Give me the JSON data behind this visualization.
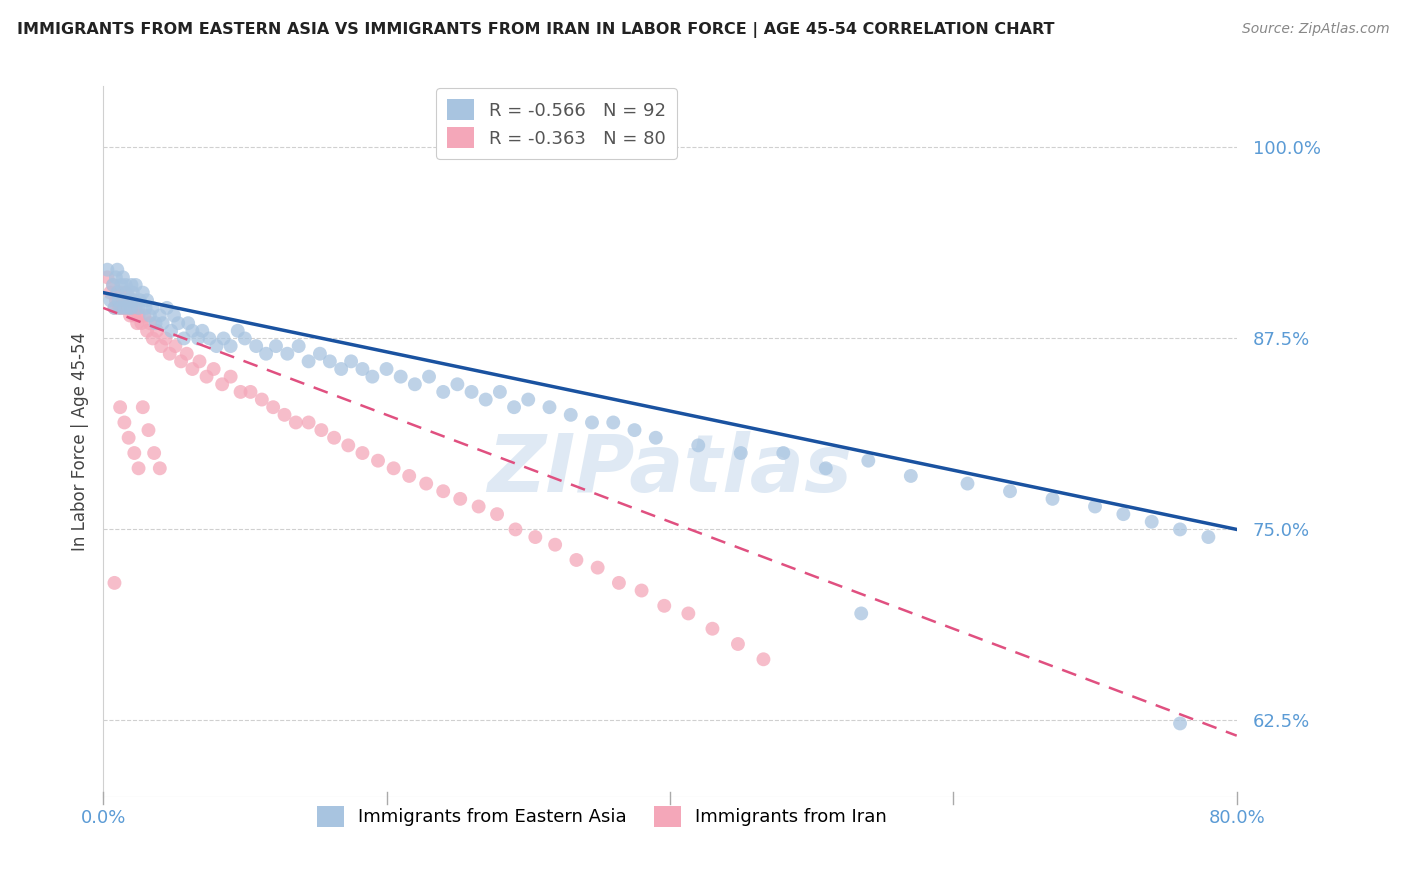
{
  "title": "IMMIGRANTS FROM EASTERN ASIA VS IMMIGRANTS FROM IRAN IN LABOR FORCE | AGE 45-54 CORRELATION CHART",
  "source": "Source: ZipAtlas.com",
  "ylabel": "In Labor Force | Age 45-54",
  "ytick_labels": [
    "100.0%",
    "87.5%",
    "75.0%",
    "62.5%"
  ],
  "ytick_values": [
    1.0,
    0.875,
    0.75,
    0.625
  ],
  "xlim": [
    0.0,
    0.8
  ],
  "ylim": [
    0.575,
    1.04
  ],
  "series1_color": "#a8c4e0",
  "series2_color": "#f4a7b9",
  "line1_color": "#1a52a0",
  "line2_color": "#e05080",
  "watermark": "ZIPatlas",
  "legend_label1": "Immigrants from Eastern Asia",
  "legend_label2": "Immigrants from Iran",
  "legend1_R": "-0.566",
  "legend1_N": "92",
  "legend2_R": "-0.363",
  "legend2_N": "80",
  "blue_x": [
    0.003,
    0.005,
    0.007,
    0.008,
    0.009,
    0.01,
    0.01,
    0.011,
    0.012,
    0.013,
    0.014,
    0.015,
    0.015,
    0.016,
    0.017,
    0.018,
    0.019,
    0.02,
    0.02,
    0.021,
    0.022,
    0.023,
    0.025,
    0.026,
    0.028,
    0.03,
    0.031,
    0.033,
    0.035,
    0.037,
    0.04,
    0.042,
    0.045,
    0.048,
    0.05,
    0.053,
    0.057,
    0.06,
    0.063,
    0.067,
    0.07,
    0.075,
    0.08,
    0.085,
    0.09,
    0.095,
    0.1,
    0.108,
    0.115,
    0.122,
    0.13,
    0.138,
    0.145,
    0.153,
    0.16,
    0.168,
    0.175,
    0.183,
    0.19,
    0.2,
    0.21,
    0.22,
    0.23,
    0.24,
    0.25,
    0.26,
    0.27,
    0.28,
    0.29,
    0.3,
    0.315,
    0.33,
    0.345,
    0.36,
    0.375,
    0.39,
    0.42,
    0.45,
    0.48,
    0.51,
    0.54,
    0.57,
    0.61,
    0.64,
    0.67,
    0.7,
    0.72,
    0.74,
    0.76,
    0.78,
    0.535,
    0.76
  ],
  "blue_y": [
    0.92,
    0.9,
    0.91,
    0.895,
    0.915,
    0.905,
    0.92,
    0.9,
    0.895,
    0.91,
    0.915,
    0.9,
    0.895,
    0.91,
    0.905,
    0.895,
    0.9,
    0.91,
    0.895,
    0.905,
    0.9,
    0.91,
    0.895,
    0.9,
    0.905,
    0.895,
    0.9,
    0.89,
    0.895,
    0.885,
    0.89,
    0.885,
    0.895,
    0.88,
    0.89,
    0.885,
    0.875,
    0.885,
    0.88,
    0.875,
    0.88,
    0.875,
    0.87,
    0.875,
    0.87,
    0.88,
    0.875,
    0.87,
    0.865,
    0.87,
    0.865,
    0.87,
    0.86,
    0.865,
    0.86,
    0.855,
    0.86,
    0.855,
    0.85,
    0.855,
    0.85,
    0.845,
    0.85,
    0.84,
    0.845,
    0.84,
    0.835,
    0.84,
    0.83,
    0.835,
    0.83,
    0.825,
    0.82,
    0.82,
    0.815,
    0.81,
    0.805,
    0.8,
    0.8,
    0.79,
    0.795,
    0.785,
    0.78,
    0.775,
    0.77,
    0.765,
    0.76,
    0.755,
    0.75,
    0.745,
    0.695,
    0.623
  ],
  "pink_x": [
    0.003,
    0.005,
    0.007,
    0.008,
    0.009,
    0.01,
    0.011,
    0.012,
    0.013,
    0.014,
    0.015,
    0.016,
    0.017,
    0.018,
    0.019,
    0.02,
    0.021,
    0.022,
    0.023,
    0.024,
    0.025,
    0.027,
    0.029,
    0.031,
    0.033,
    0.035,
    0.038,
    0.041,
    0.044,
    0.047,
    0.051,
    0.055,
    0.059,
    0.063,
    0.068,
    0.073,
    0.078,
    0.084,
    0.09,
    0.097,
    0.104,
    0.112,
    0.12,
    0.128,
    0.136,
    0.145,
    0.154,
    0.163,
    0.173,
    0.183,
    0.194,
    0.205,
    0.216,
    0.228,
    0.24,
    0.252,
    0.265,
    0.278,
    0.291,
    0.305,
    0.319,
    0.334,
    0.349,
    0.364,
    0.38,
    0.396,
    0.413,
    0.43,
    0.448,
    0.466,
    0.008,
    0.012,
    0.015,
    0.018,
    0.022,
    0.025,
    0.028,
    0.032,
    0.036,
    0.04
  ],
  "pink_y": [
    0.915,
    0.905,
    0.91,
    0.895,
    0.9,
    0.905,
    0.895,
    0.905,
    0.895,
    0.9,
    0.895,
    0.905,
    0.895,
    0.9,
    0.89,
    0.895,
    0.9,
    0.89,
    0.895,
    0.885,
    0.89,
    0.885,
    0.89,
    0.88,
    0.885,
    0.875,
    0.88,
    0.87,
    0.875,
    0.865,
    0.87,
    0.86,
    0.865,
    0.855,
    0.86,
    0.85,
    0.855,
    0.845,
    0.85,
    0.84,
    0.84,
    0.835,
    0.83,
    0.825,
    0.82,
    0.82,
    0.815,
    0.81,
    0.805,
    0.8,
    0.795,
    0.79,
    0.785,
    0.78,
    0.775,
    0.77,
    0.765,
    0.76,
    0.75,
    0.745,
    0.74,
    0.73,
    0.725,
    0.715,
    0.71,
    0.7,
    0.695,
    0.685,
    0.675,
    0.665,
    0.715,
    0.83,
    0.82,
    0.81,
    0.8,
    0.79,
    0.83,
    0.815,
    0.8,
    0.79
  ]
}
